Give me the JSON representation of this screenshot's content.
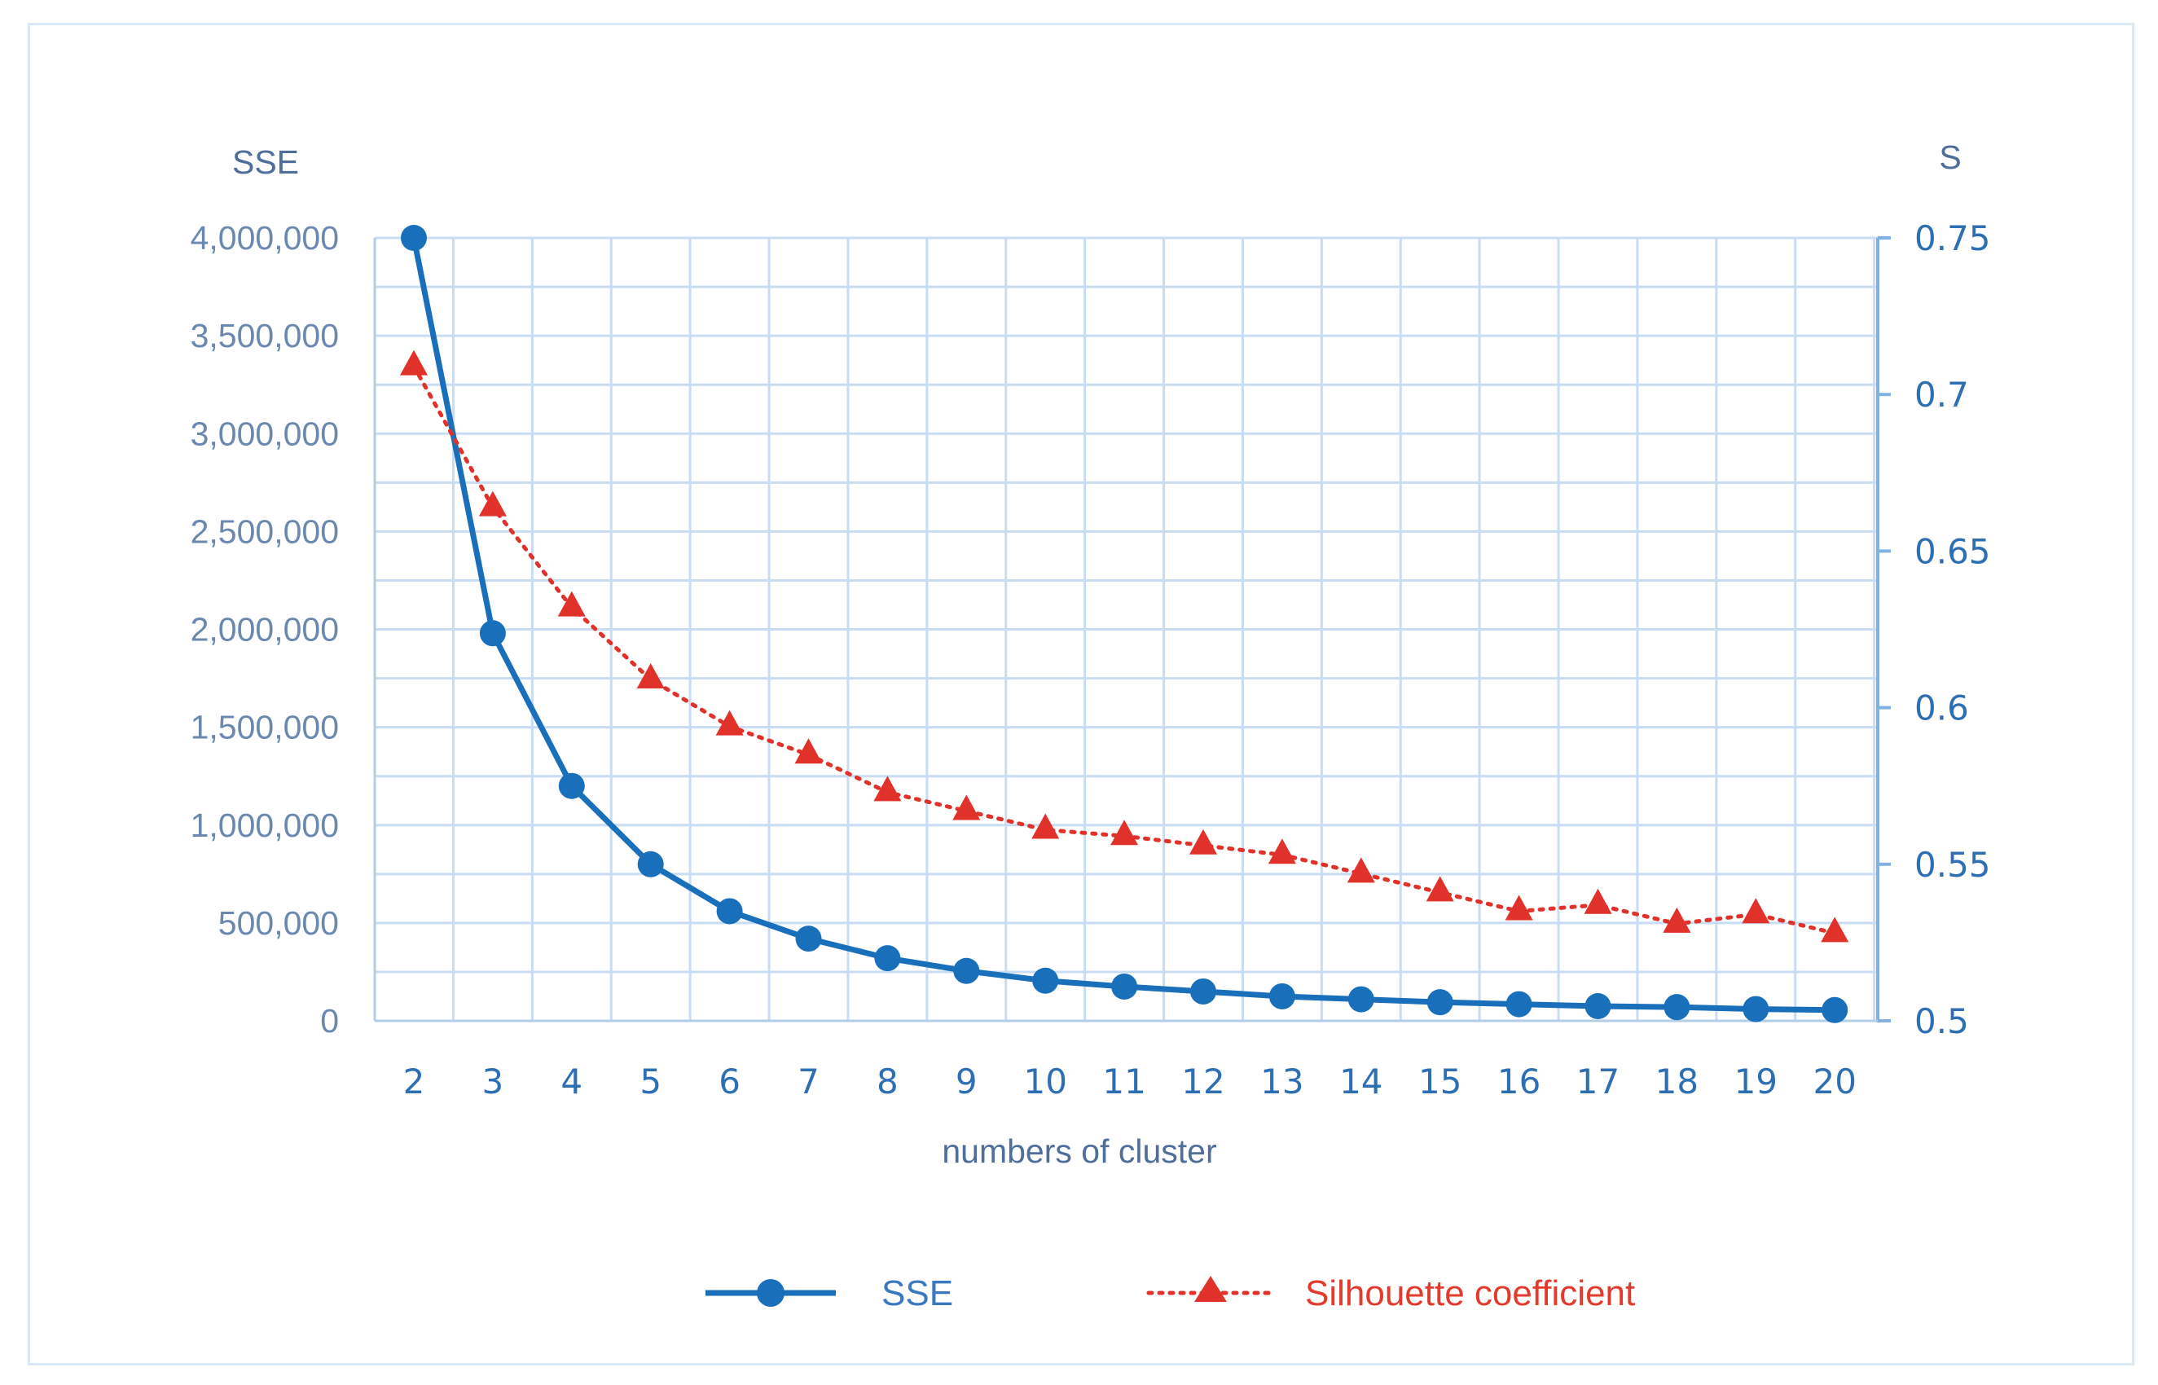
{
  "chart_data": {
    "type": "line",
    "title": "",
    "xlabel": "numbers of cluster",
    "ylabel_left": "SSE",
    "ylabel_right": "S",
    "categories": [
      2,
      3,
      4,
      5,
      6,
      7,
      8,
      9,
      10,
      11,
      12,
      13,
      14,
      15,
      16,
      17,
      18,
      19,
      20
    ],
    "y_left": {
      "lim": [
        0,
        4000000
      ],
      "ticks": [
        0,
        500000,
        1000000,
        1500000,
        2000000,
        2500000,
        3000000,
        3500000,
        4000000
      ],
      "tick_labels": [
        "0",
        "500,000",
        "1,000,000",
        "1,500,000",
        "2,000,000",
        "2,500,000",
        "3,000,000",
        "3,500,000",
        "4,000,000"
      ]
    },
    "y_right": {
      "lim": [
        0.5,
        0.75
      ],
      "ticks": [
        0.5,
        0.55,
        0.6,
        0.65,
        0.7,
        0.75
      ],
      "tick_labels": [
        "0.5",
        "0.55",
        "0.6",
        "0.65",
        "0.7",
        "0.75"
      ]
    },
    "series": [
      {
        "name": "SSE",
        "axis": "left",
        "style": "solid",
        "marker": "circle",
        "color": "#1a6fba",
        "values": [
          4000000,
          1980000,
          1200000,
          800000,
          560000,
          420000,
          320000,
          255000,
          205000,
          175000,
          150000,
          125000,
          110000,
          95000,
          85000,
          75000,
          70000,
          60000,
          55000
        ]
      },
      {
        "name": "Silhouette coefficient",
        "axis": "right",
        "style": "dotted",
        "marker": "triangle",
        "color": "#e0322a",
        "values": [
          0.709,
          0.664,
          0.632,
          0.609,
          0.594,
          0.585,
          0.573,
          0.567,
          0.561,
          0.559,
          0.556,
          0.553,
          0.547,
          0.541,
          0.535,
          0.537,
          0.531,
          0.534,
          0.528
        ]
      }
    ],
    "grid": true,
    "legend": "bottom"
  }
}
